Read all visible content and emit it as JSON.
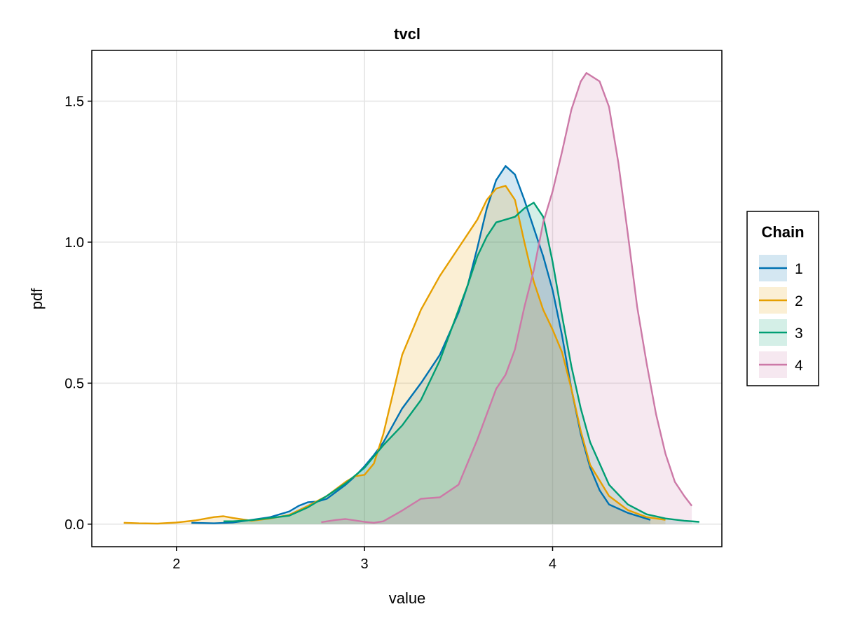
{
  "chart_data": {
    "type": "area",
    "title": "tvcl",
    "xlabel": "value",
    "ylabel": "pdf",
    "xlim": [
      1.55,
      4.9
    ],
    "ylim": [
      -0.08,
      1.68
    ],
    "xticks": [
      2,
      3,
      4
    ],
    "yticks": [
      0.0,
      0.5,
      1.0,
      1.5
    ],
    "xtick_labels": [
      "2",
      "3",
      "4"
    ],
    "ytick_labels": [
      "0.0",
      "0.5",
      "1.0",
      "1.5"
    ],
    "grid": true,
    "legend": {
      "title": "Chain",
      "placement": "right"
    },
    "series": [
      {
        "name": "1",
        "color": "#0072b2",
        "points": [
          [
            2.08,
            0.005
          ],
          [
            2.2,
            0.003
          ],
          [
            2.3,
            0.006
          ],
          [
            2.4,
            0.015
          ],
          [
            2.5,
            0.025
          ],
          [
            2.6,
            0.045
          ],
          [
            2.65,
            0.065
          ],
          [
            2.7,
            0.078
          ],
          [
            2.75,
            0.08
          ],
          [
            2.8,
            0.09
          ],
          [
            2.85,
            0.115
          ],
          [
            2.9,
            0.14
          ],
          [
            2.95,
            0.17
          ],
          [
            3.0,
            0.205
          ],
          [
            3.05,
            0.245
          ],
          [
            3.1,
            0.29
          ],
          [
            3.2,
            0.41
          ],
          [
            3.3,
            0.5
          ],
          [
            3.4,
            0.6
          ],
          [
            3.5,
            0.75
          ],
          [
            3.55,
            0.85
          ],
          [
            3.6,
            0.98
          ],
          [
            3.65,
            1.12
          ],
          [
            3.7,
            1.22
          ],
          [
            3.75,
            1.27
          ],
          [
            3.8,
            1.24
          ],
          [
            3.85,
            1.15
          ],
          [
            3.9,
            1.05
          ],
          [
            3.95,
            0.95
          ],
          [
            4.0,
            0.83
          ],
          [
            4.05,
            0.67
          ],
          [
            4.1,
            0.48
          ],
          [
            4.15,
            0.32
          ],
          [
            4.2,
            0.2
          ],
          [
            4.25,
            0.12
          ],
          [
            4.3,
            0.07
          ],
          [
            4.4,
            0.04
          ],
          [
            4.52,
            0.015
          ]
        ]
      },
      {
        "name": "2",
        "color": "#e69f00",
        "points": [
          [
            1.72,
            0.005
          ],
          [
            1.8,
            0.003
          ],
          [
            1.9,
            0.002
          ],
          [
            2.0,
            0.006
          ],
          [
            2.1,
            0.013
          ],
          [
            2.2,
            0.025
          ],
          [
            2.25,
            0.028
          ],
          [
            2.3,
            0.022
          ],
          [
            2.4,
            0.012
          ],
          [
            2.5,
            0.02
          ],
          [
            2.6,
            0.033
          ],
          [
            2.7,
            0.065
          ],
          [
            2.8,
            0.1
          ],
          [
            2.9,
            0.15
          ],
          [
            2.95,
            0.17
          ],
          [
            3.0,
            0.175
          ],
          [
            3.05,
            0.215
          ],
          [
            3.1,
            0.32
          ],
          [
            3.15,
            0.46
          ],
          [
            3.2,
            0.6
          ],
          [
            3.3,
            0.76
          ],
          [
            3.4,
            0.88
          ],
          [
            3.5,
            0.98
          ],
          [
            3.6,
            1.08
          ],
          [
            3.65,
            1.15
          ],
          [
            3.7,
            1.19
          ],
          [
            3.75,
            1.2
          ],
          [
            3.8,
            1.15
          ],
          [
            3.85,
            1.0
          ],
          [
            3.9,
            0.86
          ],
          [
            3.95,
            0.76
          ],
          [
            4.0,
            0.69
          ],
          [
            4.05,
            0.61
          ],
          [
            4.1,
            0.48
          ],
          [
            4.15,
            0.33
          ],
          [
            4.2,
            0.21
          ],
          [
            4.3,
            0.1
          ],
          [
            4.4,
            0.05
          ],
          [
            4.5,
            0.025
          ],
          [
            4.6,
            0.015
          ]
        ]
      },
      {
        "name": "3",
        "color": "#009e73",
        "points": [
          [
            2.25,
            0.01
          ],
          [
            2.3,
            0.01
          ],
          [
            2.4,
            0.014
          ],
          [
            2.5,
            0.022
          ],
          [
            2.6,
            0.03
          ],
          [
            2.7,
            0.06
          ],
          [
            2.8,
            0.1
          ],
          [
            2.9,
            0.145
          ],
          [
            3.0,
            0.2
          ],
          [
            3.1,
            0.28
          ],
          [
            3.2,
            0.35
          ],
          [
            3.3,
            0.44
          ],
          [
            3.4,
            0.58
          ],
          [
            3.5,
            0.76
          ],
          [
            3.55,
            0.85
          ],
          [
            3.6,
            0.95
          ],
          [
            3.65,
            1.02
          ],
          [
            3.7,
            1.07
          ],
          [
            3.75,
            1.08
          ],
          [
            3.8,
            1.09
          ],
          [
            3.85,
            1.12
          ],
          [
            3.9,
            1.14
          ],
          [
            3.95,
            1.09
          ],
          [
            4.0,
            0.93
          ],
          [
            4.05,
            0.74
          ],
          [
            4.1,
            0.56
          ],
          [
            4.15,
            0.41
          ],
          [
            4.2,
            0.29
          ],
          [
            4.3,
            0.14
          ],
          [
            4.4,
            0.07
          ],
          [
            4.5,
            0.035
          ],
          [
            4.6,
            0.02
          ],
          [
            4.7,
            0.012
          ],
          [
            4.78,
            0.008
          ]
        ]
      },
      {
        "name": "4",
        "color": "#cc79a7",
        "points": [
          [
            2.77,
            0.007
          ],
          [
            2.85,
            0.015
          ],
          [
            2.9,
            0.018
          ],
          [
            3.0,
            0.008
          ],
          [
            3.05,
            0.005
          ],
          [
            3.1,
            0.01
          ],
          [
            3.2,
            0.048
          ],
          [
            3.3,
            0.09
          ],
          [
            3.4,
            0.095
          ],
          [
            3.5,
            0.14
          ],
          [
            3.6,
            0.3
          ],
          [
            3.7,
            0.48
          ],
          [
            3.75,
            0.53
          ],
          [
            3.8,
            0.62
          ],
          [
            3.85,
            0.77
          ],
          [
            3.9,
            0.9
          ],
          [
            3.95,
            1.07
          ],
          [
            4.0,
            1.18
          ],
          [
            4.05,
            1.32
          ],
          [
            4.1,
            1.47
          ],
          [
            4.15,
            1.57
          ],
          [
            4.18,
            1.6
          ],
          [
            4.25,
            1.57
          ],
          [
            4.3,
            1.48
          ],
          [
            4.35,
            1.28
          ],
          [
            4.4,
            1.03
          ],
          [
            4.45,
            0.77
          ],
          [
            4.5,
            0.57
          ],
          [
            4.55,
            0.39
          ],
          [
            4.6,
            0.25
          ],
          [
            4.65,
            0.15
          ],
          [
            4.7,
            0.1
          ],
          [
            4.74,
            0.065
          ]
        ]
      }
    ]
  }
}
